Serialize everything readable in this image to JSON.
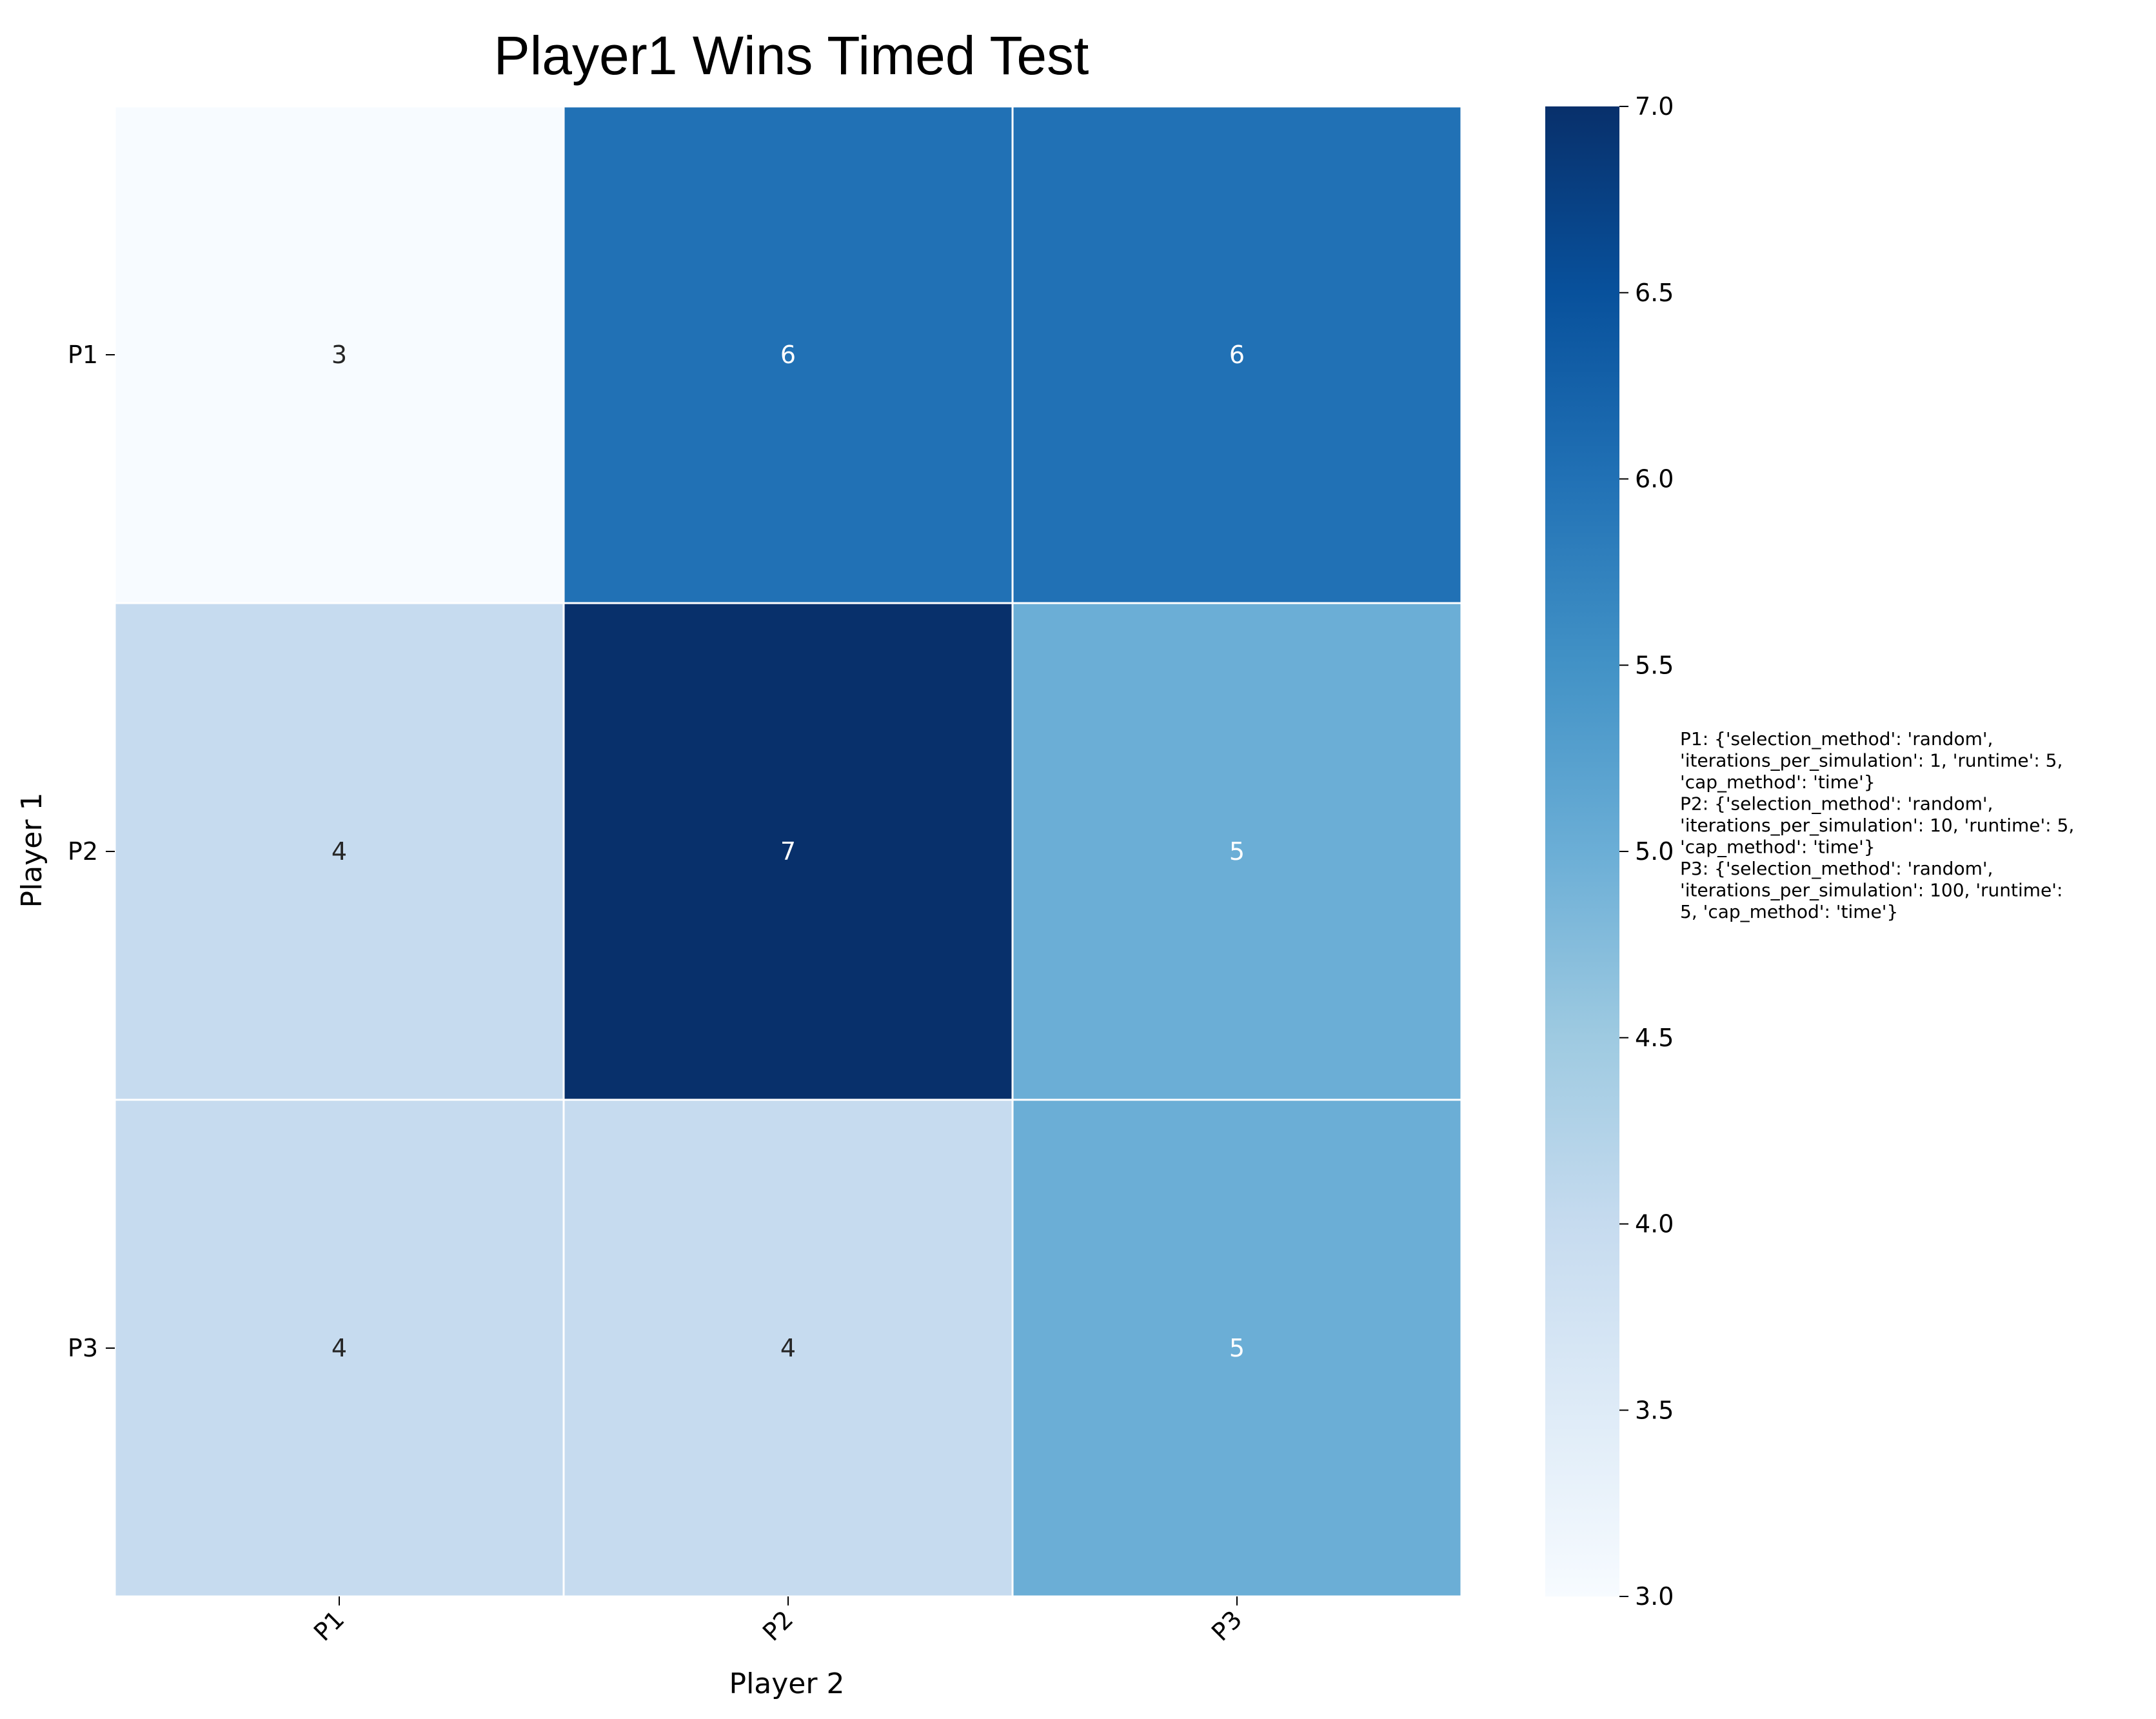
{
  "chart_data": {
    "type": "heatmap",
    "title": "Player1 Wins Timed Test",
    "xlabel": "Player 2",
    "ylabel": "Player 1",
    "x_categories": [
      "P1",
      "P2",
      "P3"
    ],
    "y_categories": [
      "P1",
      "P2",
      "P3"
    ],
    "values": [
      [
        3,
        6,
        6
      ],
      [
        4,
        7,
        5
      ],
      [
        4,
        4,
        5
      ]
    ],
    "colormap": "Blues",
    "colorbar": {
      "range": [
        3.0,
        7.0
      ],
      "ticks": [
        "3.0",
        "3.5",
        "4.0",
        "4.5",
        "5.0",
        "5.5",
        "6.0",
        "6.5",
        "7.0"
      ]
    },
    "colors": {
      "low": "#f7fbff",
      "high": "#08306b",
      "grid_line": "#ffffff"
    },
    "annotation_lines": [
      "P1: {'selection_method': 'random',",
      "'iterations_per_simulation': 1, 'runtime': 5,",
      "'cap_method': 'time'}",
      "P2: {'selection_method': 'random',",
      "'iterations_per_simulation': 10, 'runtime': 5,",
      "'cap_method': 'time'}",
      "P3: {'selection_method': 'random',",
      "'iterations_per_simulation': 100, 'runtime':",
      "5, 'cap_method': 'time'}"
    ]
  }
}
